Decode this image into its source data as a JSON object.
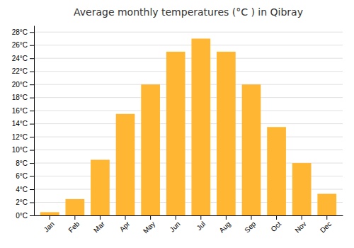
{
  "chart_data": {
    "type": "bar",
    "title": "Average monthly temperatures (°C ) in Qibray",
    "categories": [
      "Jan",
      "Feb",
      "Mar",
      "Apr",
      "May",
      "Jun",
      "Jul",
      "Aug",
      "Sep",
      "Oct",
      "Nov",
      "Dec"
    ],
    "values": [
      0.5,
      2.5,
      8.5,
      15.5,
      20.0,
      25.0,
      27.0,
      25.0,
      20.0,
      13.5,
      8.0,
      3.3
    ],
    "color": "#FFB733",
    "ylim": [
      0,
      29
    ],
    "yticks": [
      {
        "value": 0,
        "label": "0°C"
      },
      {
        "value": 2,
        "label": "2°C"
      },
      {
        "value": 4,
        "label": "4°C"
      },
      {
        "value": 6,
        "label": "6°C"
      },
      {
        "value": 8,
        "label": "8°C"
      },
      {
        "value": 10,
        "label": "10°C"
      },
      {
        "value": 12,
        "label": "12°C"
      },
      {
        "value": 14,
        "label": "14°C"
      },
      {
        "value": 16,
        "label": "16°C"
      },
      {
        "value": 18,
        "label": "18°C"
      },
      {
        "value": 20,
        "label": "20°C"
      },
      {
        "value": 22,
        "label": "22°C"
      },
      {
        "value": 24,
        "label": "24°C"
      },
      {
        "value": 26,
        "label": "26°C"
      },
      {
        "value": 28,
        "label": "28°C"
      }
    ],
    "grid": true
  }
}
